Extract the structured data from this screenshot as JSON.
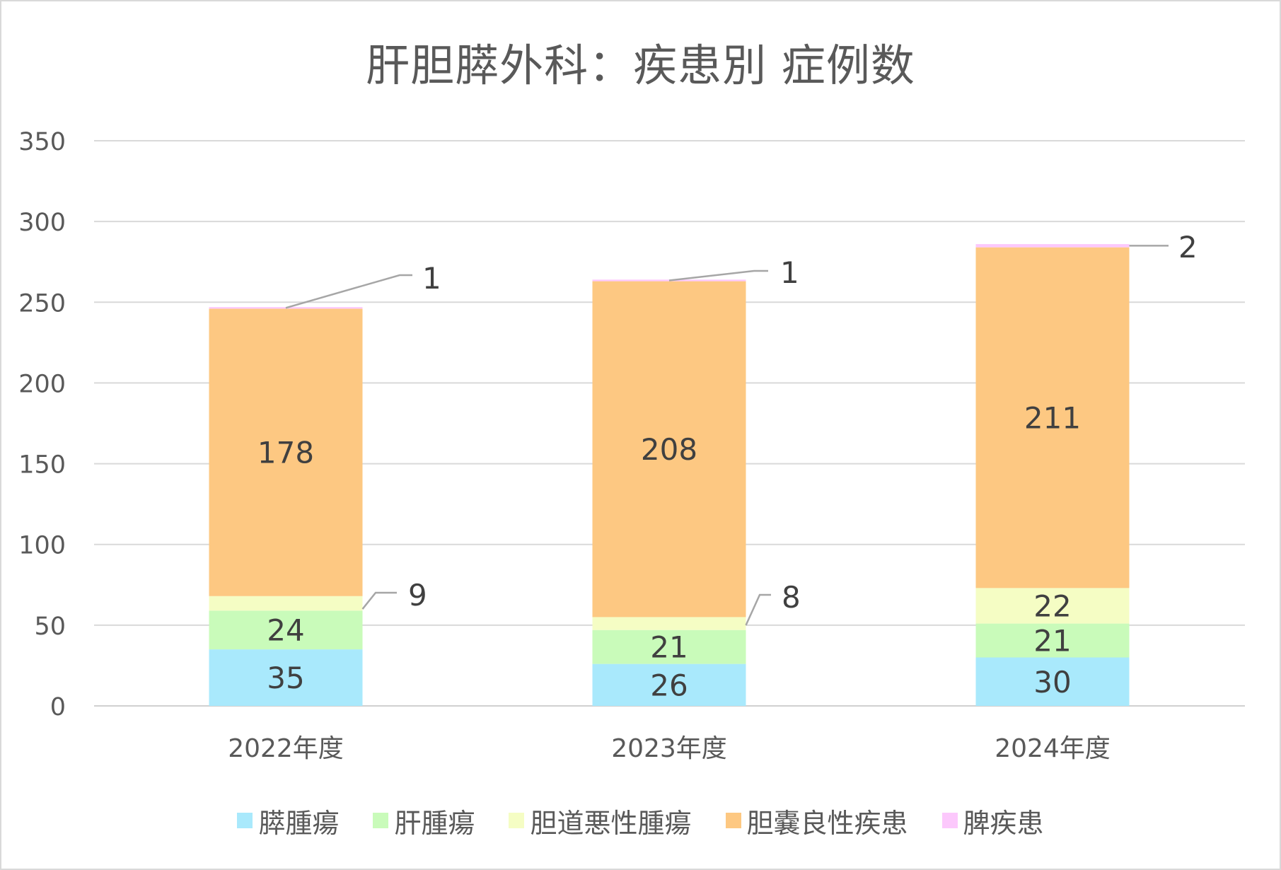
{
  "chart_data": {
    "type": "bar",
    "stacked": true,
    "title": "肝胆膵外科：疾患別 症例数",
    "categories": [
      "2022年度",
      "2023年度",
      "2024年度"
    ],
    "ylim": [
      0,
      350
    ],
    "yticks": [
      0,
      50,
      100,
      150,
      200,
      250,
      300,
      350
    ],
    "grid": true,
    "legend_position": "bottom",
    "series": [
      {
        "name": "膵腫瘍",
        "color": "#a9e9fc",
        "values": [
          35,
          26,
          30
        ]
      },
      {
        "name": "肝腫瘍",
        "color": "#c9fbba",
        "values": [
          24,
          21,
          21
        ]
      },
      {
        "name": "胆道悪性腫瘍",
        "color": "#f5fdc4",
        "values": [
          9,
          8,
          22
        ]
      },
      {
        "name": "胆嚢良性疾患",
        "color": "#fdc882",
        "values": [
          178,
          208,
          211
        ]
      },
      {
        "name": "脾疾患",
        "color": "#fcc8fc",
        "values": [
          1,
          1,
          2
        ]
      }
    ],
    "data_labels": [
      [
        "35",
        "24",
        "9",
        "178",
        "1"
      ],
      [
        "26",
        "21",
        "8",
        "208",
        "1"
      ],
      [
        "30",
        "21",
        "22",
        "211",
        "2"
      ]
    ]
  }
}
